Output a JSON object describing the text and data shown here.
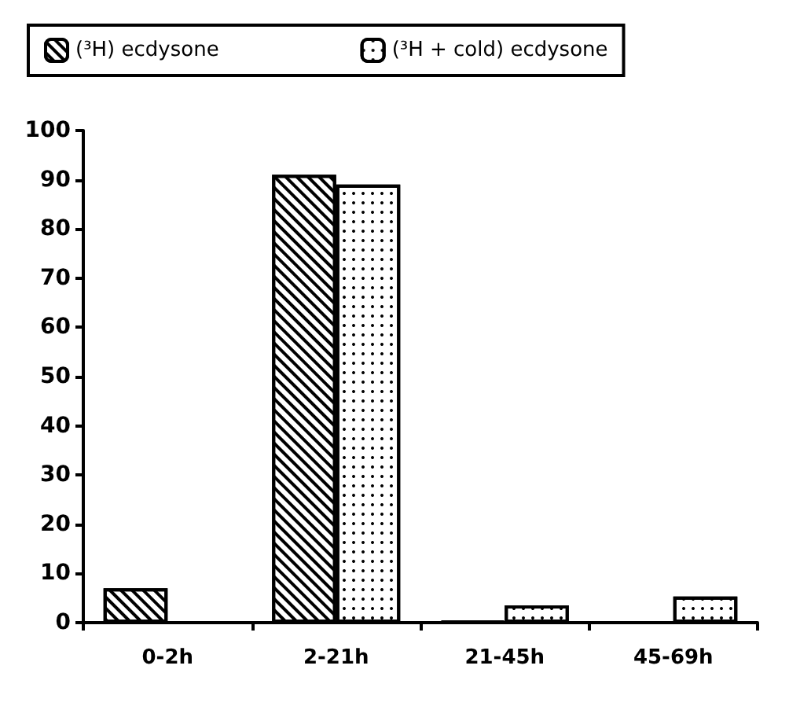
{
  "chart_data": {
    "type": "bar",
    "categories": [
      "0-2h",
      "2-21h",
      "21-45h",
      "45-69h"
    ],
    "series": [
      {
        "name": "(³H) ecdysone",
        "color": "#ffffff",
        "values": [
          7,
          91,
          0.3,
          null
        ]
      },
      {
        "name": "(³H + cold) ecdysone",
        "color": "#ffffff",
        "values": [
          null,
          89,
          3.5,
          5.3
        ]
      }
    ],
    "ylim": [
      0,
      100
    ],
    "yticks": [
      0,
      10,
      20,
      30,
      40,
      50,
      60,
      70,
      80,
      90,
      100
    ],
    "grid": false,
    "legend": "top"
  }
}
